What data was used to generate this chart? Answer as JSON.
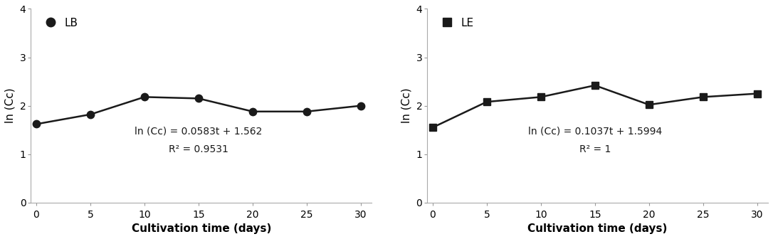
{
  "lb_x": [
    0,
    5,
    10,
    15,
    20,
    25,
    30
  ],
  "lb_y": [
    1.62,
    1.82,
    2.18,
    2.15,
    1.88,
    1.88,
    2.0
  ],
  "le_x": [
    0,
    5,
    10,
    15,
    20,
    25,
    30
  ],
  "le_y": [
    1.55,
    2.08,
    2.18,
    2.42,
    2.02,
    2.18,
    2.25
  ],
  "lb_label": "LB",
  "le_label": "LE",
  "lb_eq": "ln (Cc) = 0.0583t + 1.562",
  "lb_r2": "R² = 0.9531",
  "le_eq": "ln (Cc) = 0.1037t + 1.5994",
  "le_r2": "R² = 1",
  "xlabel": "Cultivation time (days)",
  "ylabel": "ln (Cc)",
  "ylim": [
    0,
    4
  ],
  "xlim": [
    -0.5,
    31
  ],
  "yticks": [
    0,
    1,
    2,
    3,
    4
  ],
  "xticks": [
    0,
    5,
    10,
    15,
    20,
    25,
    30
  ],
  "color": "#1a1a1a",
  "fontsize_label": 11,
  "fontsize_tick": 10,
  "fontsize_eq": 10,
  "fontsize_legend": 11,
  "lb_ann_x": 15,
  "lb_ann_y": 1.25,
  "le_ann_x": 15,
  "le_ann_y": 1.25
}
